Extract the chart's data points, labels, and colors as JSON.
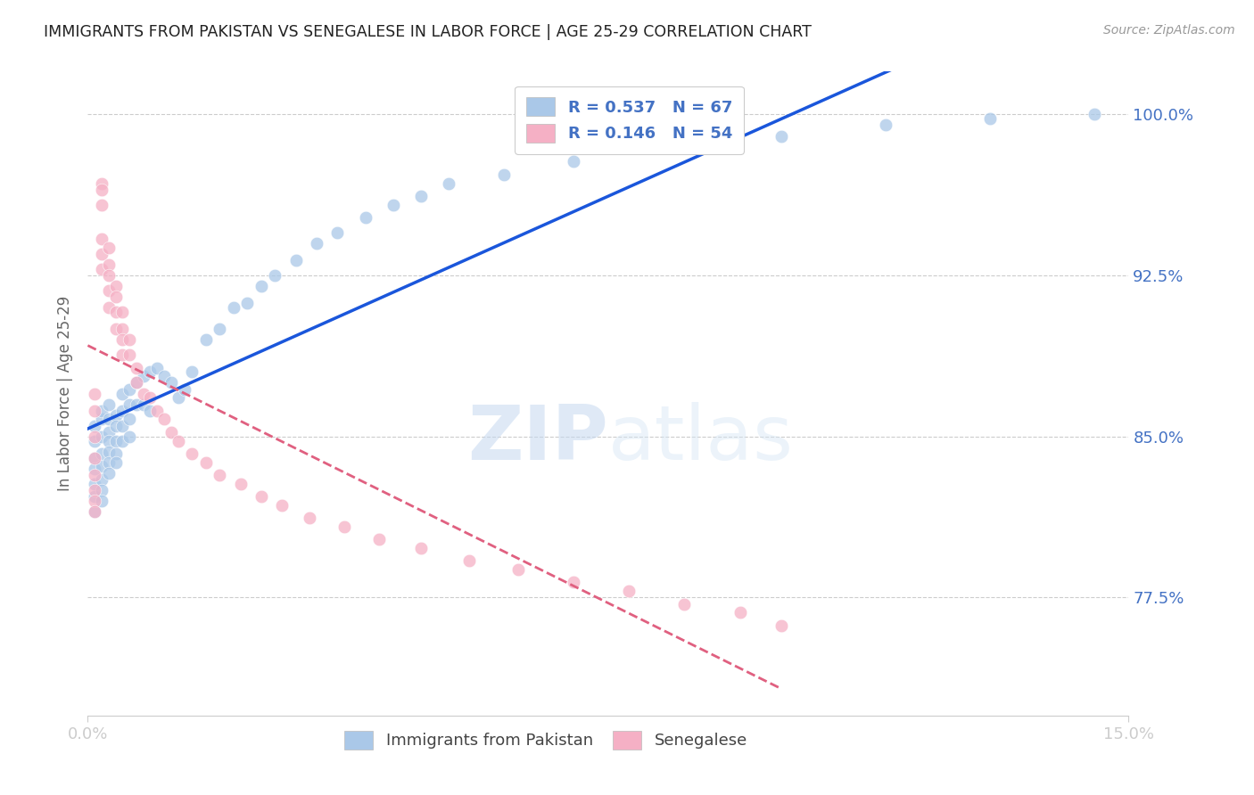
{
  "title": "IMMIGRANTS FROM PAKISTAN VS SENEGALESE IN LABOR FORCE | AGE 25-29 CORRELATION CHART",
  "source": "Source: ZipAtlas.com",
  "ylabel": "In Labor Force | Age 25-29",
  "xlim": [
    0.0,
    0.15
  ],
  "ylim": [
    0.72,
    1.02
  ],
  "y_tick_vals": [
    0.775,
    0.85,
    0.925,
    1.0
  ],
  "y_tick_labels": [
    "77.5%",
    "85.0%",
    "92.5%",
    "100.0%"
  ],
  "x_tick_vals": [
    0.0,
    0.15
  ],
  "x_tick_labels": [
    "0.0%",
    "15.0%"
  ],
  "pakistan_R": "0.537",
  "pakistan_N": "67",
  "senegal_R": "0.146",
  "senegal_N": "54",
  "legend_labels": [
    "Immigrants from Pakistan",
    "Senegalese"
  ],
  "pakistan_dot_color": "#aac8e8",
  "pakistan_line_color": "#1a56db",
  "senegal_dot_color": "#f5b0c5",
  "senegal_line_color": "#e06080",
  "watermark_color": "#cce0f5",
  "title_color": "#222222",
  "right_axis_color": "#4472c4",
  "grid_color": "#cccccc",
  "background_color": "#ffffff",
  "dot_size": 110,
  "dot_alpha": 0.75,
  "pakistan_x": [
    0.001,
    0.001,
    0.001,
    0.001,
    0.001,
    0.001,
    0.001,
    0.002,
    0.002,
    0.002,
    0.002,
    0.002,
    0.002,
    0.002,
    0.002,
    0.003,
    0.003,
    0.003,
    0.003,
    0.003,
    0.003,
    0.003,
    0.004,
    0.004,
    0.004,
    0.004,
    0.004,
    0.005,
    0.005,
    0.005,
    0.005,
    0.006,
    0.006,
    0.006,
    0.006,
    0.007,
    0.007,
    0.008,
    0.008,
    0.009,
    0.009,
    0.01,
    0.011,
    0.012,
    0.013,
    0.014,
    0.015,
    0.017,
    0.019,
    0.021,
    0.023,
    0.025,
    0.027,
    0.03,
    0.033,
    0.036,
    0.04,
    0.044,
    0.048,
    0.052,
    0.06,
    0.07,
    0.085,
    0.1,
    0.115,
    0.13,
    0.145
  ],
  "pakistan_y": [
    0.84,
    0.848,
    0.855,
    0.835,
    0.828,
    0.822,
    0.815,
    0.858,
    0.862,
    0.85,
    0.842,
    0.836,
    0.83,
    0.825,
    0.82,
    0.865,
    0.858,
    0.852,
    0.848,
    0.843,
    0.838,
    0.833,
    0.86,
    0.855,
    0.848,
    0.842,
    0.838,
    0.87,
    0.862,
    0.855,
    0.848,
    0.872,
    0.865,
    0.858,
    0.85,
    0.875,
    0.865,
    0.878,
    0.865,
    0.88,
    0.862,
    0.882,
    0.878,
    0.875,
    0.868,
    0.872,
    0.88,
    0.895,
    0.9,
    0.91,
    0.912,
    0.92,
    0.925,
    0.932,
    0.94,
    0.945,
    0.952,
    0.958,
    0.962,
    0.968,
    0.972,
    0.978,
    0.985,
    0.99,
    0.995,
    0.998,
    1.0
  ],
  "senegal_x": [
    0.001,
    0.001,
    0.001,
    0.001,
    0.001,
    0.001,
    0.001,
    0.001,
    0.002,
    0.002,
    0.002,
    0.002,
    0.002,
    0.002,
    0.003,
    0.003,
    0.003,
    0.003,
    0.003,
    0.004,
    0.004,
    0.004,
    0.004,
    0.005,
    0.005,
    0.005,
    0.005,
    0.006,
    0.006,
    0.007,
    0.007,
    0.008,
    0.009,
    0.01,
    0.011,
    0.012,
    0.013,
    0.015,
    0.017,
    0.019,
    0.022,
    0.025,
    0.028,
    0.032,
    0.037,
    0.042,
    0.048,
    0.055,
    0.062,
    0.07,
    0.078,
    0.086,
    0.094,
    0.1
  ],
  "senegal_y": [
    0.85,
    0.862,
    0.87,
    0.84,
    0.832,
    0.825,
    0.82,
    0.815,
    0.968,
    0.965,
    0.958,
    0.942,
    0.935,
    0.928,
    0.938,
    0.93,
    0.925,
    0.918,
    0.91,
    0.92,
    0.915,
    0.908,
    0.9,
    0.908,
    0.9,
    0.895,
    0.888,
    0.895,
    0.888,
    0.882,
    0.875,
    0.87,
    0.868,
    0.862,
    0.858,
    0.852,
    0.848,
    0.842,
    0.838,
    0.832,
    0.828,
    0.822,
    0.818,
    0.812,
    0.808,
    0.802,
    0.798,
    0.792,
    0.788,
    0.782,
    0.778,
    0.772,
    0.768,
    0.762
  ]
}
